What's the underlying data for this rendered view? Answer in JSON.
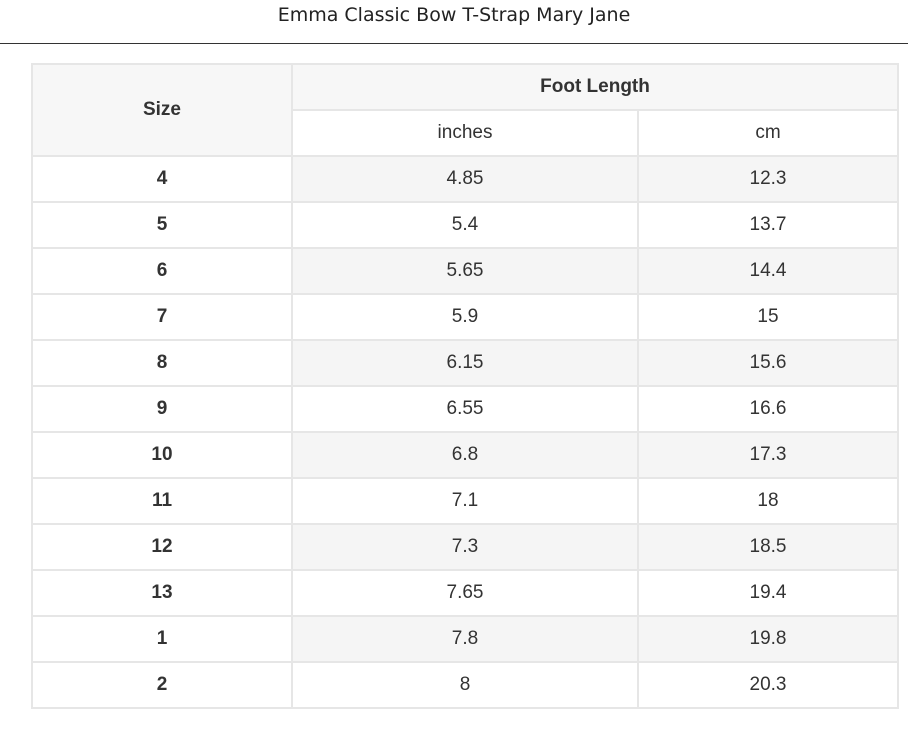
{
  "title": "Emma Classic Bow T-Strap Mary Jane",
  "table": {
    "size_header": "Size",
    "group_header": "Foot Length",
    "unit_headers": [
      "inches",
      "cm"
    ],
    "rows": [
      {
        "size": "4",
        "inches": "4.85",
        "cm": "12.3"
      },
      {
        "size": "5",
        "inches": "5.4",
        "cm": "13.7"
      },
      {
        "size": "6",
        "inches": "5.65",
        "cm": "14.4"
      },
      {
        "size": "7",
        "inches": "5.9",
        "cm": "15"
      },
      {
        "size": "8",
        "inches": "6.15",
        "cm": "15.6"
      },
      {
        "size": "9",
        "inches": "6.55",
        "cm": "16.6"
      },
      {
        "size": "10",
        "inches": "6.8",
        "cm": "17.3"
      },
      {
        "size": "11",
        "inches": "7.1",
        "cm": "18"
      },
      {
        "size": "12",
        "inches": "7.3",
        "cm": "18.5"
      },
      {
        "size": "13",
        "inches": "7.65",
        "cm": "19.4"
      },
      {
        "size": "1",
        "inches": "7.8",
        "cm": "19.8"
      },
      {
        "size": "2",
        "inches": "8",
        "cm": "20.3"
      }
    ]
  }
}
